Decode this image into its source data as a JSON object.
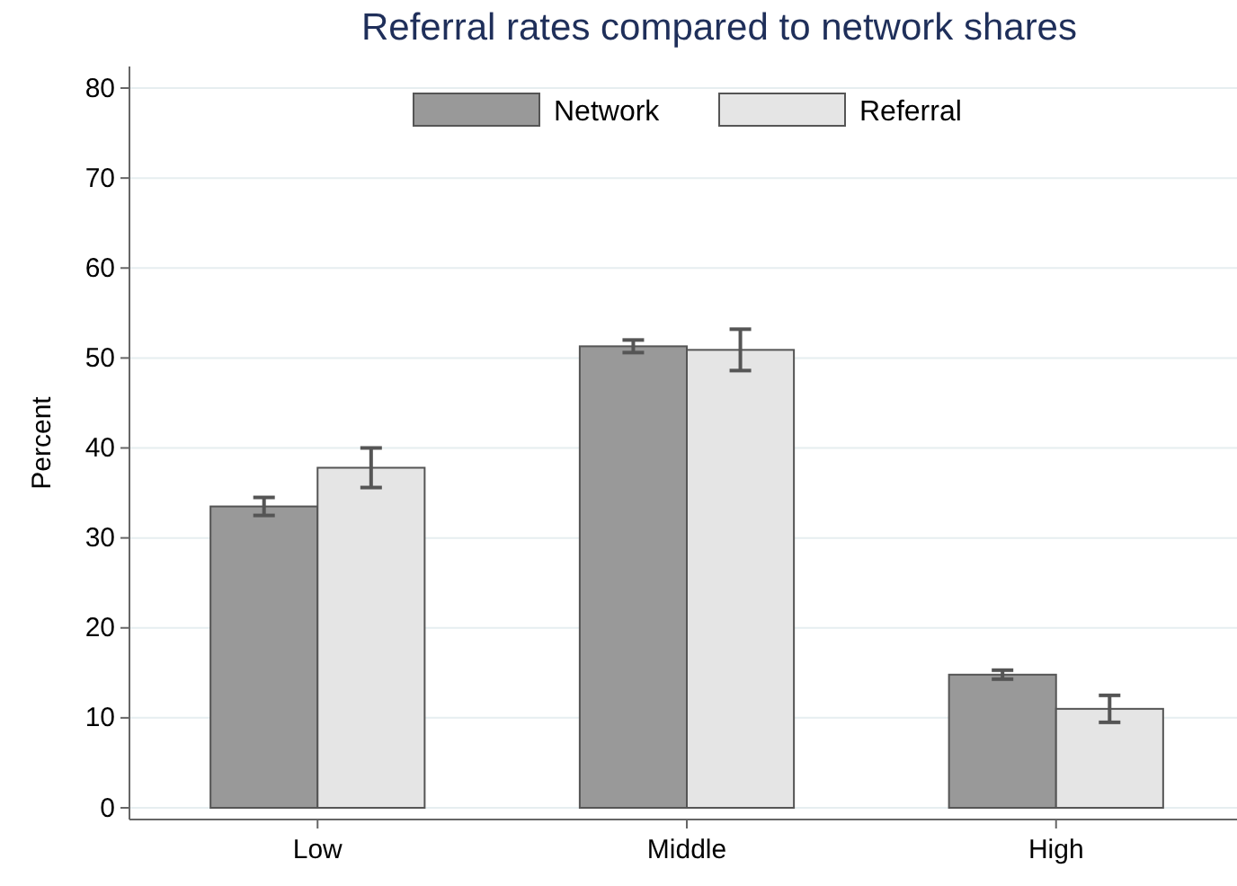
{
  "chart_data": {
    "type": "bar",
    "title": "Referral rates compared to network shares",
    "ylabel": "Percent",
    "categories": [
      "Low",
      "Middle",
      "High"
    ],
    "series": [
      {
        "name": "Network",
        "color": "#999999",
        "values": [
          33.5,
          51.3,
          14.8
        ],
        "errors": [
          1.0,
          0.7,
          0.5
        ]
      },
      {
        "name": "Referral",
        "color": "#e5e5e5",
        "values": [
          37.8,
          50.9,
          11.0
        ],
        "errors": [
          2.2,
          2.3,
          1.5
        ]
      }
    ],
    "ylim": [
      -1.3,
      82.4
    ],
    "yticks": [
      0,
      10,
      20,
      30,
      40,
      50,
      60,
      70,
      80
    ],
    "grid": "y",
    "legend": "top"
  }
}
